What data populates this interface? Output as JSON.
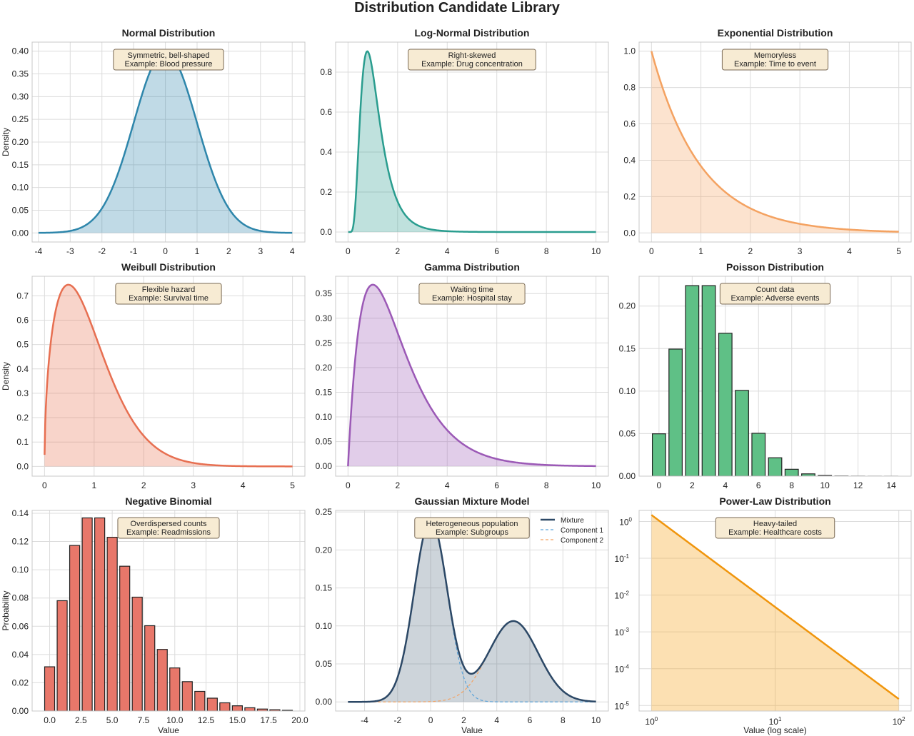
{
  "suptitle": "Distribution Candidate Library",
  "chart_data": [
    {
      "type": "area",
      "kind": "normal",
      "params": {
        "mu": 0,
        "sigma": 1
      },
      "title": "Normal Distribution",
      "xlabel": "",
      "ylabel": "Density",
      "xlim": [
        -4.2,
        4.4
      ],
      "ylim": [
        -0.02,
        0.42
      ],
      "xticks": [
        -4,
        -3,
        -2,
        -1,
        0,
        1,
        2,
        3,
        4
      ],
      "xticklabels": [
        "-4",
        "-3",
        "-2",
        "-1",
        "0",
        "1",
        "2",
        "3",
        "4"
      ],
      "yticks": [
        0,
        0.05,
        0.1,
        0.15,
        0.2,
        0.25,
        0.3,
        0.35,
        0.4
      ],
      "yticklabels": [
        "0.00",
        "0.05",
        "0.10",
        "0.15",
        "0.20",
        "0.25",
        "0.30",
        "0.35",
        "0.40"
      ],
      "x_range": [
        -4,
        4
      ],
      "color": "#2e86ab",
      "fill": "#2e86ab",
      "annotation": [
        "Symmetric, bell-shaped",
        "Example: Blood pressure"
      ]
    },
    {
      "type": "area",
      "kind": "lognormal",
      "params": {
        "mu": 0,
        "sigma": 0.5
      },
      "title": "Log-Normal Distribution",
      "xlabel": "",
      "ylabel": "",
      "xlim": [
        -0.5,
        10.5
      ],
      "ylim": [
        -0.05,
        0.95
      ],
      "xticks": [
        0,
        2,
        4,
        6,
        8,
        10
      ],
      "xticklabels": [
        "0",
        "2",
        "4",
        "6",
        "8",
        "10"
      ],
      "yticks": [
        0,
        0.2,
        0.4,
        0.6,
        0.8
      ],
      "yticklabels": [
        "0.0",
        "0.2",
        "0.4",
        "0.6",
        "0.8"
      ],
      "x_range": [
        0.01,
        10
      ],
      "color": "#2a9d8f",
      "fill": "#2a9d8f",
      "annotation": [
        "Right-skewed",
        "Example: Drug concentration"
      ]
    },
    {
      "type": "area",
      "kind": "exponential",
      "params": {
        "rate": 1
      },
      "title": "Exponential Distribution",
      "xlabel": "",
      "ylabel": "",
      "xlim": [
        -0.25,
        5.25
      ],
      "ylim": [
        -0.05,
        1.05
      ],
      "xticks": [
        0,
        1,
        2,
        3,
        4,
        5
      ],
      "xticklabels": [
        "0",
        "1",
        "2",
        "3",
        "4",
        "5"
      ],
      "yticks": [
        0,
        0.2,
        0.4,
        0.6,
        0.8,
        1.0
      ],
      "yticklabels": [
        "0.0",
        "0.2",
        "0.4",
        "0.6",
        "0.8",
        "1.0"
      ],
      "x_range": [
        0,
        5
      ],
      "color": "#f4a261",
      "fill": "#f4a261",
      "annotation": [
        "Memoryless",
        "Example: Time to event"
      ]
    },
    {
      "type": "area",
      "kind": "weibull",
      "params": {
        "shape": 1.5,
        "scale": 1
      },
      "title": "Weibull Distribution",
      "xlabel": "",
      "ylabel": "Density",
      "xlim": [
        -0.25,
        5.25
      ],
      "ylim": [
        -0.04,
        0.78
      ],
      "xticks": [
        0,
        1,
        2,
        3,
        4,
        5
      ],
      "xticklabels": [
        "0",
        "1",
        "2",
        "3",
        "4",
        "5"
      ],
      "yticks": [
        0,
        0.1,
        0.2,
        0.3,
        0.4,
        0.5,
        0.6,
        0.7
      ],
      "yticklabels": [
        "0.0",
        "0.1",
        "0.2",
        "0.3",
        "0.4",
        "0.5",
        "0.6",
        "0.7"
      ],
      "x_range": [
        0.001,
        5
      ],
      "color": "#e76f51",
      "fill": "#e76f51",
      "annotation": [
        "Flexible hazard",
        "Example: Survival time"
      ]
    },
    {
      "type": "area",
      "kind": "gamma",
      "params": {
        "shape": 2,
        "scale": 1
      },
      "title": "Gamma Distribution",
      "xlabel": "",
      "ylabel": "",
      "xlim": [
        -0.5,
        10.5
      ],
      "ylim": [
        -0.02,
        0.385
      ],
      "xticks": [
        0,
        2,
        4,
        6,
        8,
        10
      ],
      "xticklabels": [
        "0",
        "2",
        "4",
        "6",
        "8",
        "10"
      ],
      "yticks": [
        0,
        0.05,
        0.1,
        0.15,
        0.2,
        0.25,
        0.3,
        0.35
      ],
      "yticklabels": [
        "0.00",
        "0.05",
        "0.10",
        "0.15",
        "0.20",
        "0.25",
        "0.30",
        "0.35"
      ],
      "x_range": [
        0,
        10
      ],
      "color": "#9b59b6",
      "fill": "#9b59b6",
      "annotation": [
        "Waiting time",
        "Example: Hospital stay"
      ]
    },
    {
      "type": "bar",
      "kind": "poisson",
      "params": {
        "lambda": 3
      },
      "title": "Poisson Distribution",
      "xlabel": "",
      "ylabel": "",
      "xlim": [
        -1.2,
        15.2
      ],
      "ylim": [
        0,
        0.235
      ],
      "xticks": [
        0,
        2,
        4,
        6,
        8,
        10,
        12,
        14
      ],
      "xticklabels": [
        "0",
        "2",
        "4",
        "6",
        "8",
        "10",
        "12",
        "14"
      ],
      "yticks": [
        0,
        0.05,
        0.1,
        0.15,
        0.2
      ],
      "yticklabels": [
        "0.00",
        "0.05",
        "0.10",
        "0.15",
        "0.20"
      ],
      "categories": [
        0,
        1,
        2,
        3,
        4,
        5,
        6,
        7,
        8,
        9,
        10,
        11,
        12,
        13,
        14
      ],
      "values": [
        0.0498,
        0.1494,
        0.224,
        0.224,
        0.168,
        0.1008,
        0.0504,
        0.0216,
        0.0081,
        0.0027,
        0.0008,
        0.0002,
        6e-05,
        1e-05,
        3e-06
      ],
      "bar_width": 0.8,
      "color": "#5fc086",
      "edgecolor": "#222222",
      "annotation": [
        "Count data",
        "Example: Adverse events"
      ]
    },
    {
      "type": "bar",
      "kind": "negative-binomial",
      "params": {
        "n": 5,
        "p": 0.5
      },
      "title": "Negative Binomial",
      "xlabel": "Value",
      "ylabel": "Probability",
      "xlim": [
        -1.4,
        20.4
      ],
      "ylim": [
        0,
        0.142
      ],
      "xticks": [
        0,
        2.5,
        5,
        7.5,
        10,
        12.5,
        15,
        17.5,
        20
      ],
      "xticklabels": [
        "0.0",
        "2.5",
        "5.0",
        "7.5",
        "10.0",
        "12.5",
        "15.0",
        "17.5",
        "20.0"
      ],
      "yticks": [
        0,
        0.02,
        0.04,
        0.06,
        0.08,
        0.1,
        0.12,
        0.14
      ],
      "yticklabels": [
        "0.00",
        "0.02",
        "0.04",
        "0.06",
        "0.08",
        "0.10",
        "0.12",
        "0.14"
      ],
      "categories": [
        0,
        1,
        2,
        3,
        4,
        5,
        6,
        7,
        8,
        9,
        10,
        11,
        12,
        13,
        14,
        15,
        16,
        17,
        18,
        19
      ],
      "values": [
        0.0313,
        0.0781,
        0.1172,
        0.1367,
        0.1367,
        0.123,
        0.1025,
        0.0806,
        0.0604,
        0.0436,
        0.0305,
        0.0208,
        0.0139,
        0.0091,
        0.0058,
        0.0037,
        0.0023,
        0.0014,
        0.0009,
        0.0005
      ],
      "bar_width": 0.8,
      "color": "#e8776a",
      "edgecolor": "#222222",
      "annotation": [
        "Overdispersed counts",
        "Example: Readmissions"
      ]
    },
    {
      "type": "area",
      "kind": "mixture",
      "params": {
        "weights": [
          0.6,
          0.4
        ],
        "means": [
          0,
          5
        ],
        "sds": [
          1,
          1.5
        ]
      },
      "title": "Gaussian Mixture Model",
      "xlabel": "Value",
      "ylabel": "",
      "xlim": [
        -5.75,
        10.75
      ],
      "ylim": [
        -0.012,
        0.252
      ],
      "xticks": [
        -4,
        -2,
        0,
        2,
        4,
        6,
        8,
        10
      ],
      "xticklabels": [
        "-4",
        "-2",
        "0",
        "2",
        "4",
        "6",
        "8",
        "10"
      ],
      "yticks": [
        0,
        0.05,
        0.1,
        0.15,
        0.2,
        0.25
      ],
      "yticklabels": [
        "0.00",
        "0.05",
        "0.10",
        "0.15",
        "0.20",
        "0.25"
      ],
      "x_range": [
        -5,
        10
      ],
      "color": "#2c4866",
      "fill": "#5b7185",
      "component_colors": [
        "#5ba3d9",
        "#f4a261"
      ],
      "legend": [
        "Mixture",
        "Component 1",
        "Component 2"
      ],
      "legend_position": "top-right",
      "annotation": [
        "Heterogeneous population",
        "Example: Subgroups"
      ]
    },
    {
      "type": "area",
      "kind": "powerlaw",
      "params": {
        "alpha": 2.5,
        "C": 1.5
      },
      "title": "Power-Law Distribution",
      "xlabel": "Value (log scale)",
      "ylabel": "",
      "xscale": "log",
      "yscale": "log",
      "xlim_log10": [
        -0.1,
        2.1
      ],
      "ylim_log10": [
        -5.15,
        0.3
      ],
      "xticks_log10": [
        0,
        1,
        2
      ],
      "xticklabels": [
        "10^0",
        "10^1",
        "10^2"
      ],
      "yticks_log10": [
        0,
        -1,
        -2,
        -3,
        -4,
        -5
      ],
      "yticklabels": [
        "10^0",
        "10^-1",
        "10^-2",
        "10^-3",
        "10^-4",
        "10^-5"
      ],
      "x_range": [
        1,
        100
      ],
      "color": "#f0950c",
      "fill": "#f5a623",
      "annotation": [
        "Heavy-tailed",
        "Example: Healthcare costs"
      ]
    }
  ]
}
